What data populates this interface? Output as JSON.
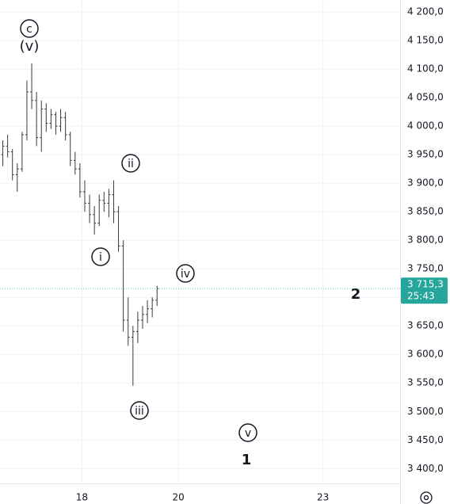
{
  "chart_data": {
    "type": "ohlc",
    "color": "#3a3a3a",
    "grid": true,
    "grid_color": "#eef0f4",
    "x": [
      16.35,
      16.45,
      16.55,
      16.65,
      16.75,
      16.85,
      16.95,
      17.05,
      17.15,
      17.25,
      17.35,
      17.45,
      17.55,
      17.65,
      17.75,
      17.85,
      17.95,
      18.05,
      18.15,
      18.25,
      18.35,
      18.45,
      18.55,
      18.65,
      18.75,
      18.85,
      18.95,
      19.05,
      19.15,
      19.25,
      19.35,
      19.45,
      19.55
    ],
    "open": [
      3950,
      3965,
      3955,
      3915,
      3925,
      3985,
      4060,
      4045,
      3980,
      4030,
      4005,
      4020,
      4000,
      4015,
      3985,
      3940,
      3925,
      3885,
      3865,
      3845,
      3830,
      3870,
      3865,
      3880,
      3850,
      3790,
      3660,
      3630,
      3640,
      3660,
      3670,
      3680,
      3695
    ],
    "high": [
      3975,
      3985,
      3960,
      3935,
      3990,
      4080,
      4110,
      4060,
      4045,
      4040,
      4030,
      4025,
      4030,
      4025,
      3990,
      3955,
      3935,
      3905,
      3880,
      3860,
      3880,
      3885,
      3890,
      3905,
      3860,
      3800,
      3700,
      3650,
      3675,
      3685,
      3695,
      3700,
      3720
    ],
    "low": [
      3930,
      3945,
      3905,
      3885,
      3920,
      3975,
      4030,
      3965,
      3955,
      3990,
      3995,
      3985,
      3990,
      3975,
      3930,
      3915,
      3875,
      3850,
      3830,
      3810,
      3825,
      3850,
      3840,
      3830,
      3780,
      3640,
      3615,
      3545,
      3620,
      3645,
      3655,
      3665,
      3685
    ],
    "close": [
      3965,
      3955,
      3915,
      3925,
      3985,
      4060,
      4045,
      3980,
      4030,
      4005,
      4020,
      4000,
      4015,
      3985,
      3940,
      3925,
      3885,
      3865,
      3845,
      3830,
      3870,
      3865,
      3880,
      3850,
      3790,
      3660,
      3630,
      3640,
      3660,
      3670,
      3680,
      3695,
      3715.3
    ],
    "xlim": [
      16.3,
      24.6
    ],
    "xticks": [
      18,
      20,
      23
    ],
    "ylim": [
      3374,
      4221
    ],
    "yticks": [
      {
        "value": 3400,
        "label": "3 400,0"
      },
      {
        "value": 3450,
        "label": "3 450,0"
      },
      {
        "value": 3500,
        "label": "3 500,0"
      },
      {
        "value": 3550,
        "label": "3 550,0"
      },
      {
        "value": 3600,
        "label": "3 600,0"
      },
      {
        "value": 3650,
        "label": "3 650,0"
      },
      {
        "value": 3700,
        "label": "3 700,0"
      },
      {
        "value": 3750,
        "label": "3 750,0"
      },
      {
        "value": 3800,
        "label": "3 800,0"
      },
      {
        "value": 3850,
        "label": "3 850,0"
      },
      {
        "value": 3900,
        "label": "3 900,0"
      },
      {
        "value": 3950,
        "label": "3 950,0"
      },
      {
        "value": 4000,
        "label": "4 000,0"
      },
      {
        "value": 4050,
        "label": "4 050,0"
      },
      {
        "value": 4100,
        "label": "4 100,0"
      },
      {
        "value": 4150,
        "label": "4 150,0"
      },
      {
        "value": 4200,
        "label": "4 200,0"
      }
    ],
    "last_price": {
      "value": 3715.3,
      "label": "3 715,3",
      "countdown": "25:43",
      "color": "#26a69a"
    },
    "annotations": [
      {
        "text": "c",
        "circled": true
      },
      {
        "text": "(v)",
        "circled": false
      },
      {
        "text": "ii",
        "circled": true
      },
      {
        "text": "i",
        "circled": true
      },
      {
        "text": "iv",
        "circled": true
      },
      {
        "text": "iii",
        "circled": true
      },
      {
        "text": "v",
        "circled": true
      },
      {
        "text": "1",
        "circled": false
      },
      {
        "text": "2",
        "circled": false
      }
    ]
  }
}
